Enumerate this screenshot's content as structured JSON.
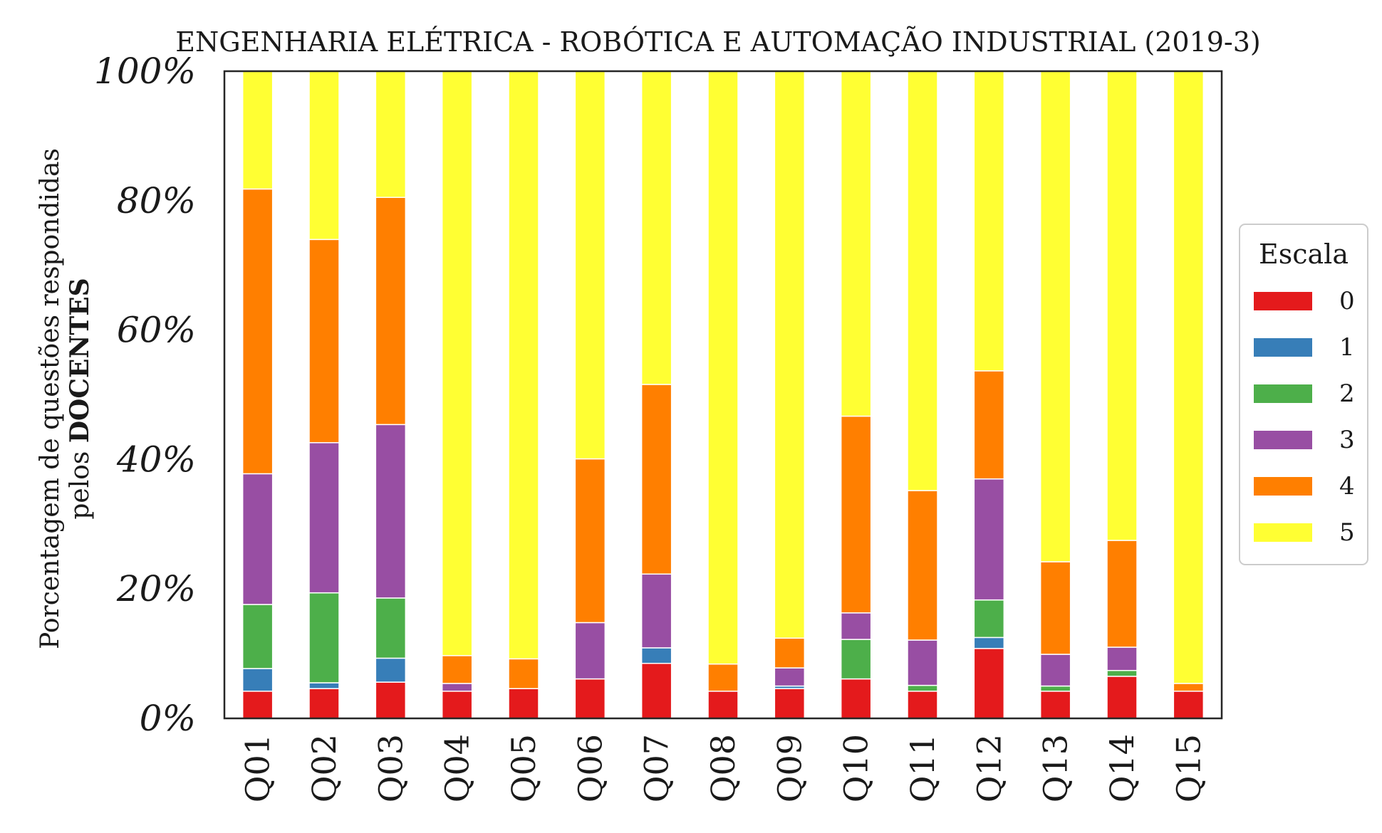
{
  "chart_data": {
    "type": "bar",
    "stacked": true,
    "title": "ENGENHARIA ELÉTRICA - ROBÓTICA E AUTOMAÇÃO INDUSTRIAL (2019-3)",
    "ylabel_line1": "Porcentagem de questões respondidas",
    "ylabel_line2_prefix": "pelos ",
    "ylabel_line2_bold": "DOCENTES",
    "xlabel": "",
    "ylim": [
      0,
      100
    ],
    "yticks": [
      "0%",
      "20%",
      "40%",
      "60%",
      "80%",
      "100%"
    ],
    "categories": [
      "Q01",
      "Q02",
      "Q03",
      "Q04",
      "Q05",
      "Q06",
      "Q07",
      "Q08",
      "Q09",
      "Q10",
      "Q11",
      "Q12",
      "Q13",
      "Q14",
      "Q15"
    ],
    "legend_title": "Escala",
    "legend_position": "center-right, outside",
    "grid": false,
    "series": [
      {
        "name": "0",
        "color": "#e41a1c",
        "values": [
          4.2,
          4.6,
          5.6,
          4.2,
          4.6,
          6.1,
          8.5,
          4.2,
          4.6,
          6.1,
          4.2,
          10.8,
          4.2,
          6.5,
          4.2
        ]
      },
      {
        "name": "1",
        "color": "#377eb8",
        "values": [
          3.5,
          0.9,
          3.7,
          0,
          0,
          0,
          2.4,
          0,
          0.4,
          0,
          0,
          1.7,
          0,
          0,
          0
        ]
      },
      {
        "name": "2",
        "color": "#4daf4a",
        "values": [
          9.9,
          13.9,
          9.3,
          0,
          0,
          0,
          0,
          0,
          0,
          6.1,
          0.9,
          5.8,
          0.8,
          0.9,
          0
        ]
      },
      {
        "name": "3",
        "color": "#984ea3",
        "values": [
          20.2,
          23.2,
          26.8,
          1.2,
          0,
          8.7,
          11.4,
          0,
          2.8,
          4.1,
          7.0,
          18.7,
          4.9,
          3.6,
          0
        ]
      },
      {
        "name": "4",
        "color": "#ff7f00",
        "values": [
          44.0,
          31.4,
          35.1,
          4.3,
          4.6,
          25.3,
          29.3,
          4.2,
          4.6,
          30.4,
          23.1,
          16.7,
          14.3,
          16.5,
          1.2
        ]
      },
      {
        "name": "5",
        "color": "#ffff33",
        "values": [
          18.2,
          26.0,
          19.5,
          90.3,
          90.8,
          59.9,
          48.4,
          91.6,
          87.6,
          53.3,
          64.8,
          46.3,
          75.8,
          72.5,
          94.6
        ]
      }
    ]
  }
}
